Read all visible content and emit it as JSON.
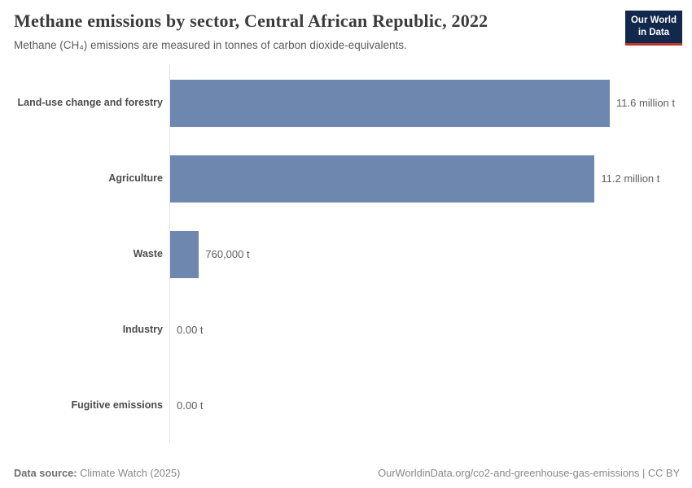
{
  "header": {
    "title": "Methane emissions by sector, Central African Republic, 2022",
    "subtitle": "Methane (CH₄) emissions are measured in tonnes of carbon dioxide-equivalents.",
    "logo_line1": "Our World",
    "logo_line2": "in Data"
  },
  "chart_data": {
    "type": "bar",
    "orientation": "horizontal",
    "title": "Methane emissions by sector, Central African Republic, 2022",
    "subtitle": "Methane (CH₄) emissions are measured in tonnes of carbon dioxide-equivalents.",
    "unit": "tonnes of carbon dioxide-equivalents",
    "categories": [
      "Land-use change and forestry",
      "Agriculture",
      "Waste",
      "Industry",
      "Fugitive emissions"
    ],
    "values": [
      11600000,
      11200000,
      760000,
      0,
      0
    ],
    "value_labels": [
      "11.6 million t",
      "11.2 million t",
      "760,000 t",
      "0.00 t",
      "0.00 t"
    ],
    "xlim": [
      0,
      11600000
    ],
    "grid": false,
    "legend_position": "none",
    "bar_color": "#6e87ae",
    "axis_line_color": "#e2e2e2"
  },
  "footer": {
    "source_label": "Data source:",
    "source_value": "Climate Watch (2025)",
    "credit": "OurWorldinData.org/co2-and-greenhouse-gas-emissions | CC BY"
  },
  "colors": {
    "bar": "#6e87ae",
    "logo_background": "#12284c",
    "logo_accent": "#c0362c",
    "title_text": "#3b3b3b",
    "subtitle_text": "#5b5b5b",
    "footer_text": "#888888"
  }
}
